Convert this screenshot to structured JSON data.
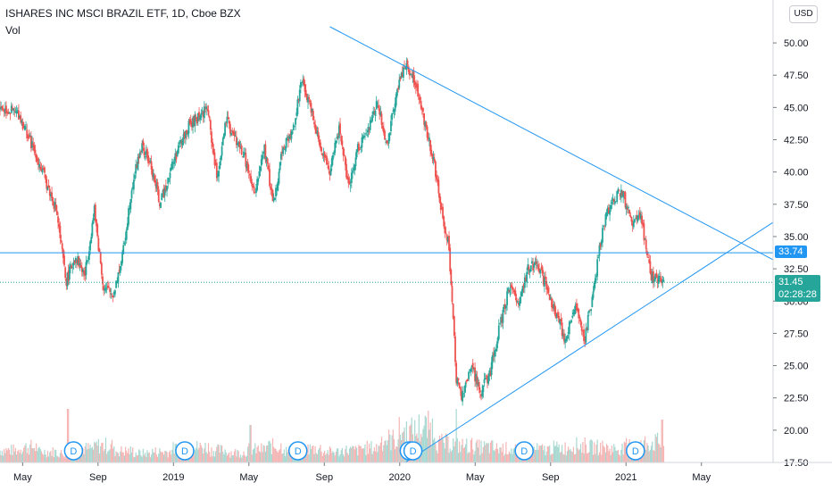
{
  "header": {
    "title": "ISHARES INC MSCI BRAZIL ETF, 1D, Cboe BZX",
    "indicator": "Vol"
  },
  "currency_button": "USD",
  "price_tags": {
    "resistance": {
      "value": "33.74",
      "color": "#2196f3"
    },
    "last": {
      "value": "31.45",
      "countdown": "02:28:28",
      "color": "#26a69a"
    }
  },
  "colors": {
    "up": "#26a69a",
    "down": "#ef5350",
    "line": "#2196f3",
    "vol_up": "#a8d8d1",
    "vol_down": "#f4b5b4"
  },
  "chart_data": {
    "type": "candlestick",
    "y_axis": {
      "ylim": [
        17.5,
        51.25
      ],
      "ticks": [
        "50.00",
        "47.50",
        "45.00",
        "42.50",
        "40.00",
        "37.50",
        "35.00",
        "32.50",
        "30.00",
        "27.50",
        "25.00",
        "22.50",
        "20.00",
        "17.50"
      ]
    },
    "x_axis": {
      "ticks": [
        "May",
        "Sep",
        "2019",
        "May",
        "Sep",
        "2020",
        "May",
        "Sep",
        "2021",
        "May"
      ],
      "tick_pos": [
        0.2,
        4.2,
        8.2,
        12.2,
        16.2,
        20.2,
        24.2,
        28.2,
        32.2,
        36.2
      ]
    },
    "x_range": [
      -1,
      40
    ],
    "anchors": [
      [
        -1,
        45
      ],
      [
        0,
        44.5
      ],
      [
        1,
        41
      ],
      [
        2,
        37
      ],
      [
        2.5,
        31.5
      ],
      [
        3,
        33.5
      ],
      [
        3.5,
        32
      ],
      [
        4,
        37
      ],
      [
        4.5,
        31
      ],
      [
        5,
        30.5
      ],
      [
        5.5,
        33.5
      ],
      [
        6,
        39
      ],
      [
        6.5,
        42
      ],
      [
        7,
        40.5
      ],
      [
        7.5,
        37.5
      ],
      [
        8,
        40
      ],
      [
        8.5,
        42
      ],
      [
        9,
        43.5
      ],
      [
        10,
        45
      ],
      [
        10.5,
        39.5
      ],
      [
        11,
        44
      ],
      [
        11.5,
        42.5
      ],
      [
        12,
        41
      ],
      [
        12.5,
        38
      ],
      [
        13,
        42
      ],
      [
        13.5,
        37.5
      ],
      [
        14,
        42
      ],
      [
        14.5,
        43
      ],
      [
        15,
        47
      ],
      [
        15.5,
        45
      ],
      [
        16,
        42
      ],
      [
        16.5,
        40
      ],
      [
        17,
        43.5
      ],
      [
        17.5,
        38.5
      ],
      [
        18,
        42
      ],
      [
        18.5,
        43
      ],
      [
        19,
        45.5
      ],
      [
        19.5,
        42
      ],
      [
        20,
        46
      ],
      [
        20.5,
        48.5
      ],
      [
        21,
        47
      ],
      [
        21.5,
        44
      ],
      [
        22,
        41
      ],
      [
        22.5,
        36
      ],
      [
        22.8,
        34.5
      ],
      [
        23.2,
        24
      ],
      [
        23.5,
        22.5
      ],
      [
        24,
        25
      ],
      [
        24.5,
        23
      ],
      [
        25,
        24.5
      ],
      [
        25.5,
        28
      ],
      [
        26,
        31
      ],
      [
        26.5,
        30
      ],
      [
        27,
        32.5
      ],
      [
        27.5,
        33
      ],
      [
        28,
        31
      ],
      [
        28.5,
        29
      ],
      [
        29,
        27
      ],
      [
        29.5,
        29.5
      ],
      [
        30,
        27
      ],
      [
        30.5,
        31
      ],
      [
        31,
        36
      ],
      [
        31.5,
        38
      ],
      [
        32,
        38.5
      ],
      [
        32.5,
        36
      ],
      [
        33,
        36.5
      ],
      [
        33.5,
        32
      ],
      [
        34,
        31.5
      ],
      [
        34.2,
        31.45
      ]
    ],
    "volume": {
      "base": [
        16,
        20,
        14,
        12,
        18,
        22,
        15,
        12,
        14,
        18,
        20,
        16,
        13,
        17,
        21,
        15,
        18,
        14,
        16,
        19,
        30,
        40,
        45,
        25,
        22,
        20,
        18,
        16,
        17,
        19,
        22,
        20,
        18,
        22,
        26
      ],
      "spikes": [
        [
          2.6,
          60
        ],
        [
          12.3,
          42
        ],
        [
          23.2,
          60
        ],
        [
          34.1,
          48
        ]
      ]
    },
    "dividends": [
      {
        "label": "D",
        "x": 2.9
      },
      {
        "label": "D",
        "x": 8.8
      },
      {
        "label": "D",
        "x": 14.8
      },
      {
        "label": "D",
        "x": 20.7
      },
      {
        "label": "D",
        "x": 20.9
      },
      {
        "label": "D",
        "x": 26.8
      },
      {
        "label": "D",
        "x": 32.7
      }
    ],
    "lines": {
      "resistance_level": 33.74,
      "last_price": 31.45,
      "upper_trend": [
        [
          16.5,
          51.25
        ],
        [
          20.5,
          48.5
        ],
        [
          32.7,
          39.0
        ],
        [
          40,
          33.2
        ]
      ],
      "lower_trend": [
        [
          20.5,
          17.5
        ],
        [
          29.8,
          26.4
        ],
        [
          34.2,
          30.5
        ],
        [
          40,
          36.1
        ]
      ]
    }
  }
}
